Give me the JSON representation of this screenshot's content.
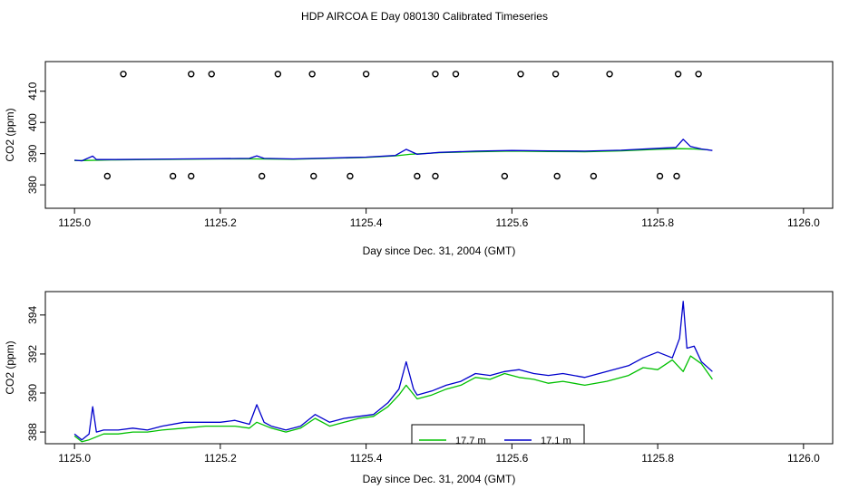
{
  "figure_title": "HDP AIRCOA E  Day 080130  Calibrated Timeseries",
  "chart_data": [
    {
      "type": "line",
      "title": "HDP AIRCOA E  Day 080130  Calibrated Timeseries",
      "xlabel": "Day since Dec. 31, 2004 (GMT)",
      "ylabel": "CO2 (ppm)",
      "xlim": [
        1124.96,
        1126.04
      ],
      "ylim": [
        372.5,
        419.5
      ],
      "xticks": [
        1125.0,
        1125.2,
        1125.4,
        1125.6,
        1125.8,
        1126.0
      ],
      "xtick_labels": [
        "1125.0",
        "1125.2",
        "1125.4",
        "1125.6",
        "1125.8",
        "1126.0"
      ],
      "yticks": [
        380,
        390,
        400,
        410
      ],
      "ytick_labels": [
        "380",
        "390",
        "400",
        "410"
      ],
      "grid": false,
      "series": [
        {
          "name": "17.7 m",
          "color": "#00c000",
          "x": [
            1125.0,
            1125.01,
            1125.05,
            1125.1,
            1125.15,
            1125.2,
            1125.25,
            1125.3,
            1125.35,
            1125.4,
            1125.44,
            1125.46,
            1125.5,
            1125.55,
            1125.6,
            1125.65,
            1125.7,
            1125.75,
            1125.8,
            1125.83,
            1125.85,
            1125.87
          ],
          "y": [
            387.8,
            387.8,
            388.0,
            388.1,
            388.2,
            388.3,
            388.3,
            388.2,
            388.5,
            388.8,
            389.3,
            389.8,
            390.3,
            390.6,
            390.8,
            390.7,
            390.6,
            390.9,
            391.4,
            391.6,
            391.5,
            391.2
          ]
        },
        {
          "name": "17.1 m",
          "color": "#0000cc",
          "x": [
            1125.0,
            1125.01,
            1125.025,
            1125.03,
            1125.05,
            1125.1,
            1125.15,
            1125.2,
            1125.24,
            1125.25,
            1125.26,
            1125.3,
            1125.35,
            1125.4,
            1125.44,
            1125.455,
            1125.47,
            1125.5,
            1125.55,
            1125.6,
            1125.65,
            1125.7,
            1125.75,
            1125.8,
            1125.825,
            1125.835,
            1125.845,
            1125.86,
            1125.875
          ],
          "y": [
            387.9,
            387.7,
            389.2,
            388.1,
            388.1,
            388.2,
            388.3,
            388.4,
            388.5,
            389.3,
            388.5,
            388.3,
            388.6,
            388.9,
            389.4,
            391.4,
            389.8,
            390.4,
            390.8,
            391.0,
            390.9,
            390.8,
            391.1,
            391.7,
            392.0,
            394.6,
            392.3,
            391.5,
            391.0
          ]
        }
      ],
      "upper_markers": [
        1125.067,
        1125.16,
        1125.188,
        1125.279,
        1125.326,
        1125.4,
        1125.495,
        1125.523,
        1125.612,
        1125.66,
        1125.734,
        1125.828,
        1125.856
      ],
      "lower_markers": [
        1125.045,
        1125.135,
        1125.16,
        1125.257,
        1125.328,
        1125.378,
        1125.47,
        1125.495,
        1125.59,
        1125.662,
        1125.712,
        1125.803,
        1125.826
      ]
    },
    {
      "type": "line",
      "title": "",
      "xlabel": "Day since Dec. 31, 2004 (GMT)",
      "ylabel": "CO2 (ppm)",
      "xlim": [
        1124.96,
        1126.04
      ],
      "ylim": [
        387.4,
        395.2
      ],
      "xticks": [
        1125.0,
        1125.2,
        1125.4,
        1125.6,
        1125.8,
        1126.0
      ],
      "xtick_labels": [
        "1125.0",
        "1125.2",
        "1125.4",
        "1125.6",
        "1125.8",
        "1126.0"
      ],
      "yticks": [
        388,
        390,
        392,
        394
      ],
      "ytick_labels": [
        "388",
        "390",
        "392",
        "394"
      ],
      "grid": false,
      "legend": {
        "placement": "bottom-center",
        "entries": [
          {
            "label": "17.7 m",
            "color": "#00c000"
          },
          {
            "label": "17.1 m",
            "color": "#0000cc"
          }
        ]
      },
      "series": [
        {
          "name": "17.7 m",
          "color": "#00c000",
          "x": [
            1125.0,
            1125.01,
            1125.02,
            1125.04,
            1125.06,
            1125.08,
            1125.1,
            1125.12,
            1125.15,
            1125.18,
            1125.2,
            1125.22,
            1125.24,
            1125.25,
            1125.27,
            1125.29,
            1125.31,
            1125.33,
            1125.35,
            1125.37,
            1125.39,
            1125.41,
            1125.43,
            1125.445,
            1125.455,
            1125.47,
            1125.49,
            1125.51,
            1125.53,
            1125.55,
            1125.57,
            1125.59,
            1125.61,
            1125.63,
            1125.65,
            1125.67,
            1125.7,
            1125.73,
            1125.76,
            1125.78,
            1125.8,
            1125.82,
            1125.835,
            1125.845,
            1125.86,
            1125.875
          ],
          "y": [
            387.8,
            387.5,
            387.6,
            387.9,
            387.9,
            388.0,
            388.0,
            388.1,
            388.2,
            388.3,
            388.3,
            388.3,
            388.2,
            388.5,
            388.2,
            388.0,
            388.2,
            388.7,
            388.3,
            388.5,
            388.7,
            388.8,
            389.3,
            389.9,
            390.4,
            389.7,
            389.9,
            390.2,
            390.4,
            390.8,
            390.7,
            391.0,
            390.8,
            390.7,
            390.5,
            390.6,
            390.4,
            390.6,
            390.9,
            391.3,
            391.2,
            391.7,
            391.1,
            391.9,
            391.5,
            390.7
          ]
        },
        {
          "name": "17.1 m",
          "color": "#0000cc",
          "x": [
            1125.0,
            1125.01,
            1125.02,
            1125.025,
            1125.03,
            1125.04,
            1125.06,
            1125.08,
            1125.1,
            1125.12,
            1125.15,
            1125.18,
            1125.2,
            1125.22,
            1125.24,
            1125.25,
            1125.26,
            1125.27,
            1125.29,
            1125.31,
            1125.33,
            1125.35,
            1125.37,
            1125.39,
            1125.41,
            1125.43,
            1125.445,
            1125.455,
            1125.465,
            1125.47,
            1125.49,
            1125.51,
            1125.53,
            1125.55,
            1125.57,
            1125.59,
            1125.61,
            1125.63,
            1125.65,
            1125.67,
            1125.7,
            1125.73,
            1125.76,
            1125.78,
            1125.8,
            1125.82,
            1125.83,
            1125.835,
            1125.84,
            1125.85,
            1125.86,
            1125.875
          ],
          "y": [
            387.9,
            387.6,
            387.9,
            389.3,
            388.0,
            388.1,
            388.1,
            388.2,
            388.1,
            388.3,
            388.5,
            388.5,
            388.5,
            388.6,
            388.4,
            389.4,
            388.5,
            388.3,
            388.1,
            388.3,
            388.9,
            388.5,
            388.7,
            388.8,
            388.9,
            389.5,
            390.2,
            391.6,
            390.2,
            389.9,
            390.1,
            390.4,
            390.6,
            391.0,
            390.9,
            391.1,
            391.2,
            391.0,
            390.9,
            391.0,
            390.8,
            391.1,
            391.4,
            391.8,
            392.1,
            391.8,
            392.8,
            394.7,
            392.3,
            392.4,
            391.6,
            391.1
          ]
        }
      ]
    }
  ]
}
